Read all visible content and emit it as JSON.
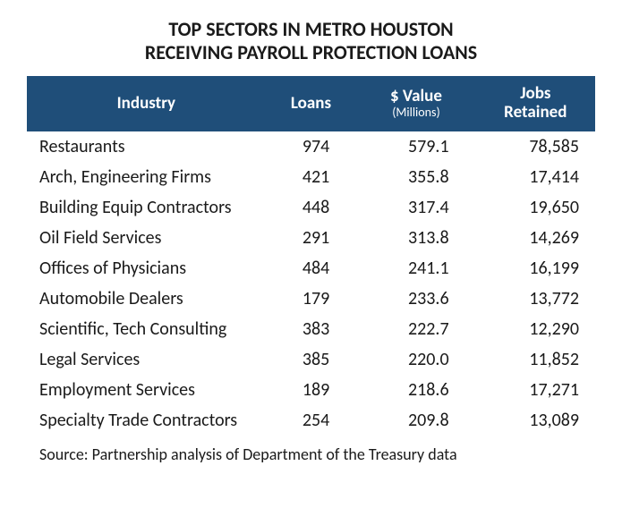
{
  "title_line1": "TOP SECTORS IN METRO HOUSTON",
  "title_line2": "RECEIVING PAYROLL PROTECTION LOANS",
  "headers": {
    "industry": "Industry",
    "loans": "Loans",
    "value_main": "$ Value",
    "value_sub": "(Millions)",
    "jobs_line1": "Jobs",
    "jobs_line2": "Retained"
  },
  "rows": [
    {
      "industry": "Restaurants",
      "loans": "974",
      "value": "579.1",
      "jobs": "78,585"
    },
    {
      "industry": "Arch, Engineering Firms",
      "loans": "421",
      "value": "355.8",
      "jobs": "17,414"
    },
    {
      "industry": "Building Equip Contractors",
      "loans": "448",
      "value": "317.4",
      "jobs": "19,650"
    },
    {
      "industry": "Oil Field Services",
      "loans": "291",
      "value": "313.8",
      "jobs": "14,269"
    },
    {
      "industry": "Offices of Physicians",
      "loans": "484",
      "value": "241.1",
      "jobs": "16,199"
    },
    {
      "industry": "Automobile Dealers",
      "loans": "179",
      "value": "233.6",
      "jobs": "13,772"
    },
    {
      "industry": "Scientific, Tech Consulting",
      "loans": "383",
      "value": "222.7",
      "jobs": "12,290"
    },
    {
      "industry": "Legal Services",
      "loans": "385",
      "value": "220.0",
      "jobs": "11,852"
    },
    {
      "industry": "Employment Services",
      "loans": "189",
      "value": "218.6",
      "jobs": "17,271"
    },
    {
      "industry": "Specialty Trade Contractors",
      "loans": "254",
      "value": "209.8",
      "jobs": "13,089"
    }
  ],
  "source": "Source: Partnership analysis of Department of the Treasury data",
  "style": {
    "header_bg": "#1f4e79",
    "header_text_color": "#ffffff",
    "body_text_color": "#1a1a1a",
    "title_fontsize": 22,
    "header_fontsize": 19,
    "cell_fontsize": 20,
    "source_fontsize": 18,
    "font_family": "Calibri, Arial, sans-serif"
  }
}
